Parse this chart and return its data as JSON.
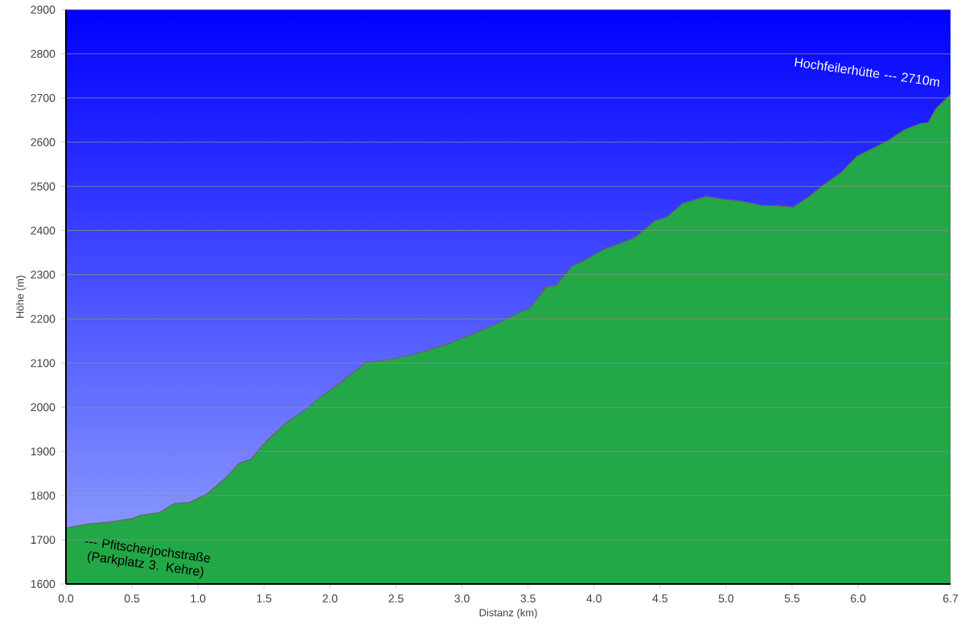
{
  "chart_data": {
    "type": "area",
    "xlabel": "Distanz  (km)",
    "ylabel": "Höhe (m)",
    "xlim": [
      0,
      6.7
    ],
    "ylim": [
      1600,
      2900
    ],
    "xticks": [
      {
        "value": 0,
        "label": "0.0"
      },
      0.5,
      {
        "value": 1,
        "label": "1.0"
      },
      1.5,
      {
        "value": 2,
        "label": "2.0"
      },
      2.5,
      {
        "value": 3,
        "label": "3.0"
      },
      3.5,
      {
        "value": 4,
        "label": "4.0"
      },
      4.5,
      {
        "value": 5,
        "label": "5.0"
      },
      5.5,
      {
        "value": 6,
        "label": "6.0"
      },
      6.7
    ],
    "yticks": [
      1600,
      1700,
      1800,
      1900,
      2000,
      2100,
      2200,
      2300,
      2400,
      2500,
      2600,
      2700,
      2800,
      2900
    ],
    "grid": "y",
    "x": [
      0,
      0.17,
      0.35,
      0.5,
      0.56,
      0.71,
      0.82,
      0.94,
      1.07,
      1.22,
      1.31,
      1.4,
      1.52,
      1.67,
      1.82,
      1.91,
      2.09,
      2.27,
      2.45,
      2.63,
      2.75,
      2.87,
      3.05,
      3.23,
      3.41,
      3.52,
      3.64,
      3.71,
      3.83,
      3.95,
      4.07,
      4.19,
      4.31,
      4.46,
      4.55,
      4.67,
      4.79,
      4.85,
      5.0,
      5.12,
      5.27,
      5.39,
      5.51,
      5.63,
      5.75,
      5.87,
      5.99,
      6.11,
      6.23,
      6.35,
      6.47,
      6.53,
      6.59,
      6.7
    ],
    "series": [
      {
        "color": "#22a846",
        "values": [
          1727,
          1736,
          1741,
          1748,
          1755,
          1762,
          1782,
          1785,
          1804,
          1843,
          1873,
          1882,
          1924,
          1965,
          1995,
          2019,
          2058,
          2101,
          2108,
          2119,
          2130,
          2141,
          2162,
          2184,
          2211,
          2225,
          2273,
          2275,
          2318,
          2336,
          2357,
          2370,
          2384,
          2422,
          2430,
          2461,
          2472,
          2477,
          2470,
          2466,
          2457,
          2456,
          2453,
          2477,
          2506,
          2531,
          2568,
          2586,
          2604,
          2628,
          2642,
          2644,
          2676,
          2708
        ]
      }
    ],
    "annotations": [
      {
        "text": "--- Pfitscherjochstraße (Parkplatz 3. Kehre)",
        "x": 0,
        "y": 1727
      },
      {
        "text": "Hochfeilerhütte --- 2710m",
        "x": 6.7,
        "y": 2710
      }
    ]
  }
}
